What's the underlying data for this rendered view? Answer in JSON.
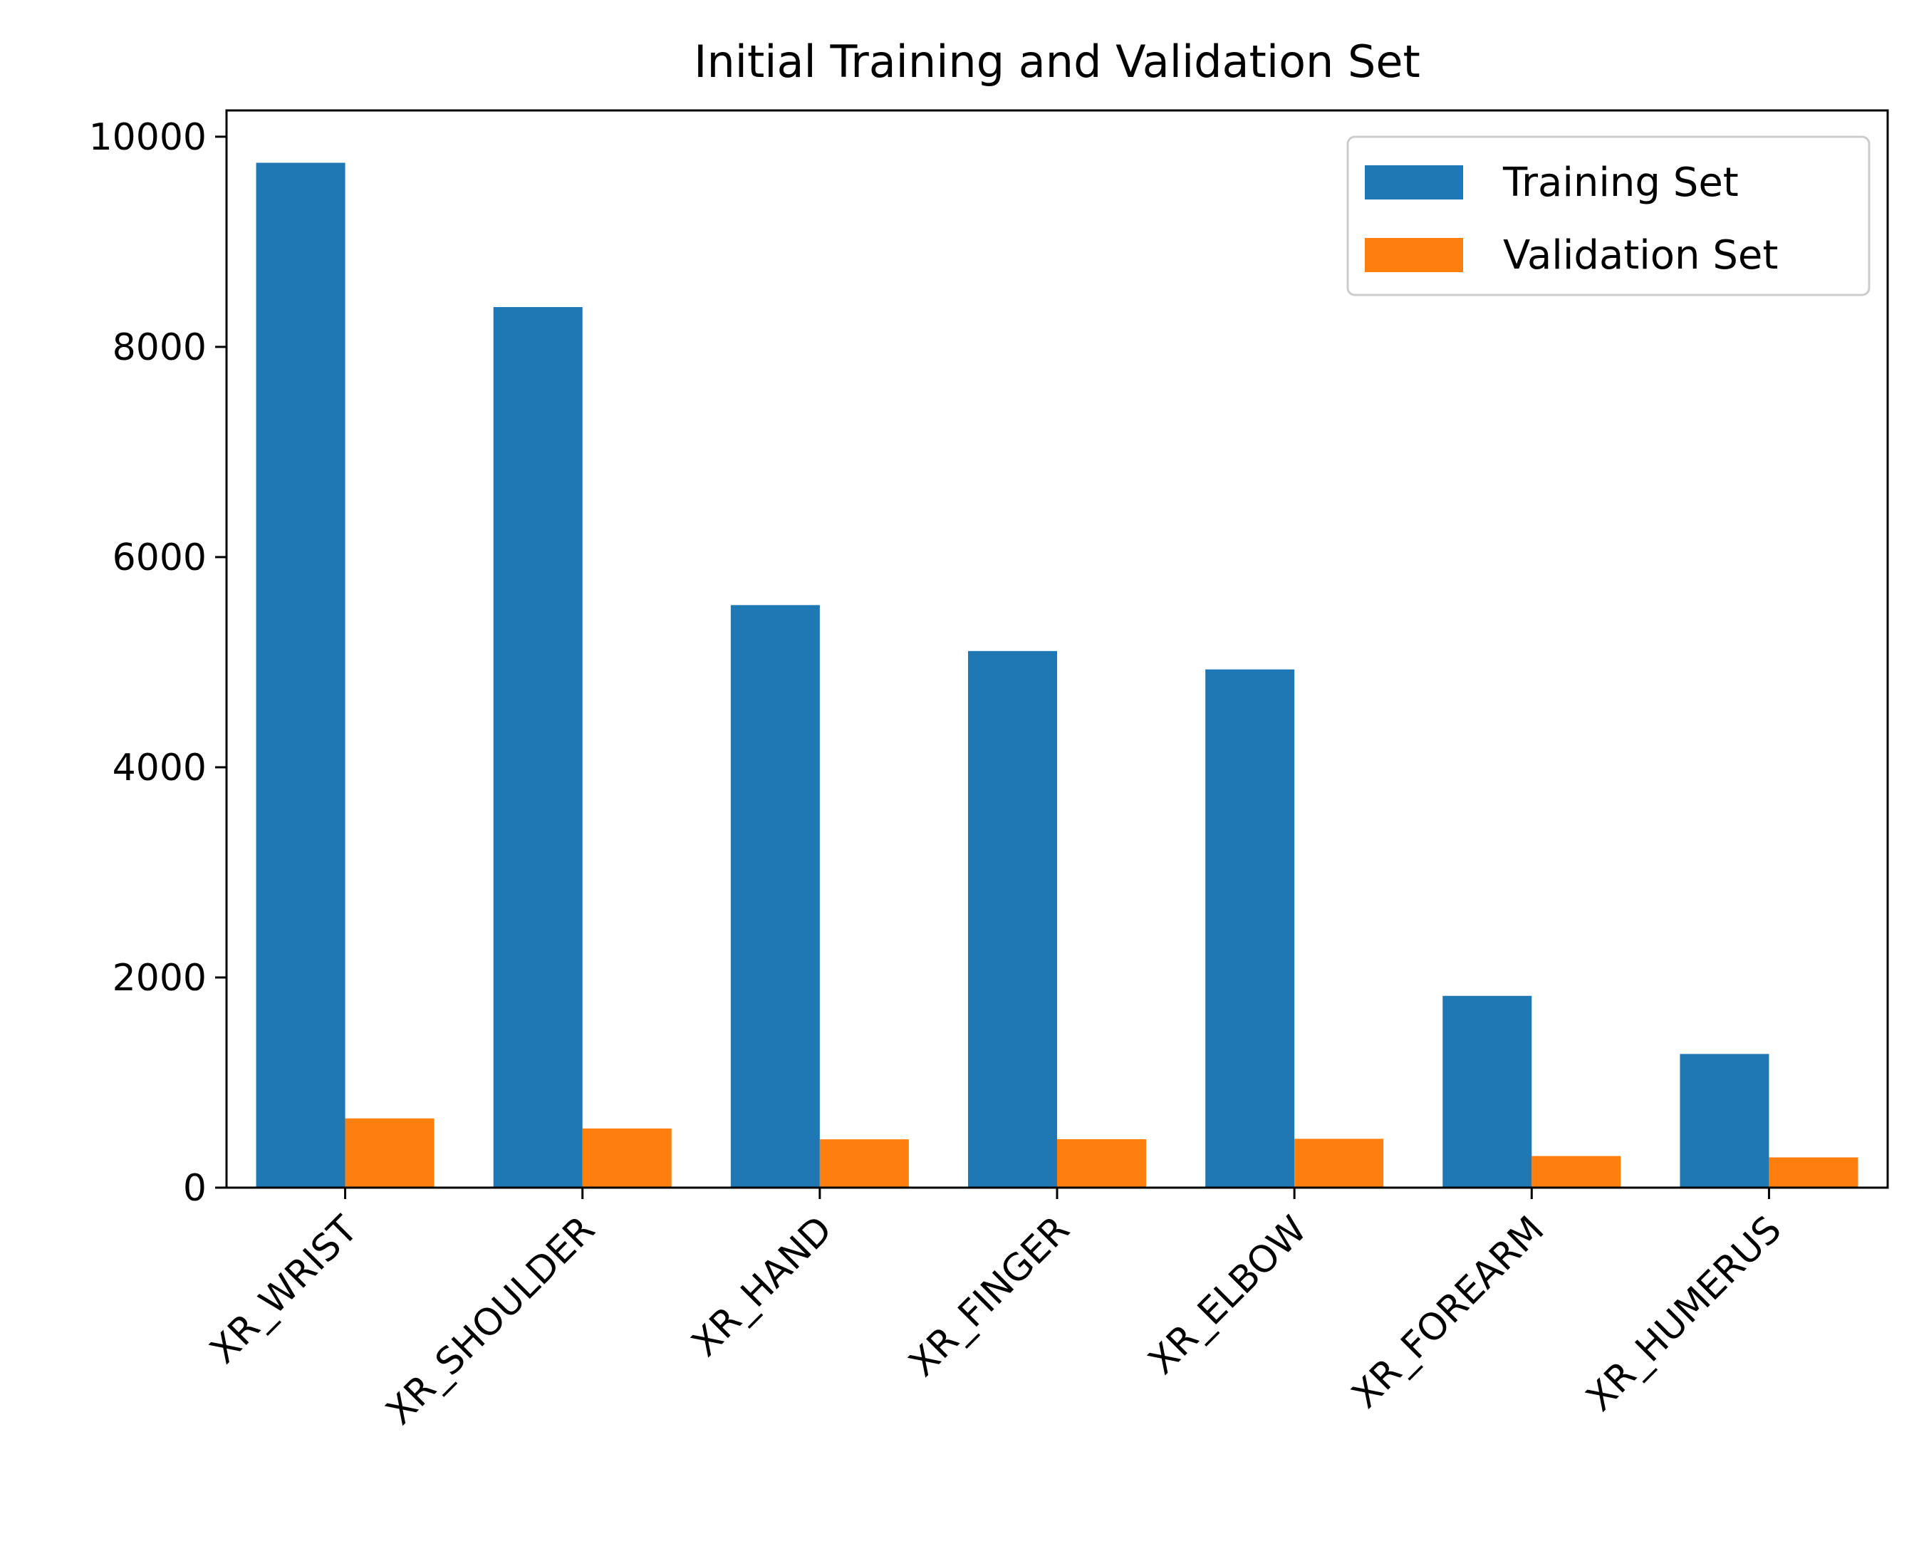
{
  "chart_data": {
    "type": "bar",
    "title": "Initial Training and Validation Set",
    "xlabel": "",
    "ylabel": "",
    "categories": [
      "XR_WRIST",
      "XR_SHOULDER",
      "XR_HAND",
      "XR_FINGER",
      "XR_ELBOW",
      "XR_FOREARM",
      "XR_HUMERUS"
    ],
    "series": [
      {
        "name": "Training Set",
        "color": "#1f77b4",
        "values": [
          9752,
          8379,
          5543,
          5106,
          4931,
          1825,
          1272
        ]
      },
      {
        "name": "Validation Set",
        "color": "#ff7f0e",
        "values": [
          659,
          563,
          460,
          461,
          465,
          301,
          288
        ]
      }
    ],
    "ylim": [
      0,
      10250
    ],
    "yticks": [
      0,
      2000,
      4000,
      6000,
      8000,
      10000
    ],
    "legend": "top-right",
    "grid": false
  }
}
